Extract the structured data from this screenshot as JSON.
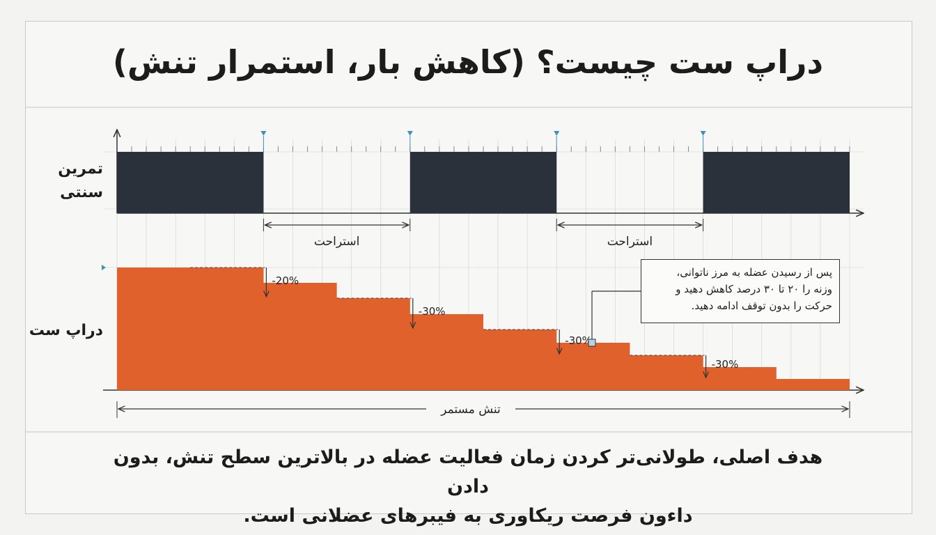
{
  "title": "دراپ ست چیست؟ (کاهش بار، استمرار تنش)",
  "rows": {
    "traditional": "تمرین سنتی",
    "dropset": "دراپ ست"
  },
  "traditional_sets": {
    "blocks": 3,
    "rest_periods": 2
  },
  "rest_label": "استراحت",
  "sustained_tension_label": "تنش مستمر",
  "drop_steps": [
    "-20%",
    "-30%",
    "-30%",
    "-30%"
  ],
  "callout": {
    "lines": [
      "پس از رسیدن عضله به مرز ناتوانی،",
      "وزنه را ۲۰ تا ۳۰ درصد کاهش دهید و",
      "حرکت را بدون توقف ادامه دهید."
    ]
  },
  "caption": {
    "lines": [
      "هدف اصلی، طولانی‌تر کردن زمان فعالیت عضله در بالاترین سطح تنش، بدون دادن",
      "داءون فرصت ریکاوری به فیبرهای عضلانی است."
    ]
  },
  "colors": {
    "dark_block": "#2b313a",
    "orange": "#e0612b",
    "grid": "#c9cdd2",
    "marker": "#3f8fbf"
  }
}
